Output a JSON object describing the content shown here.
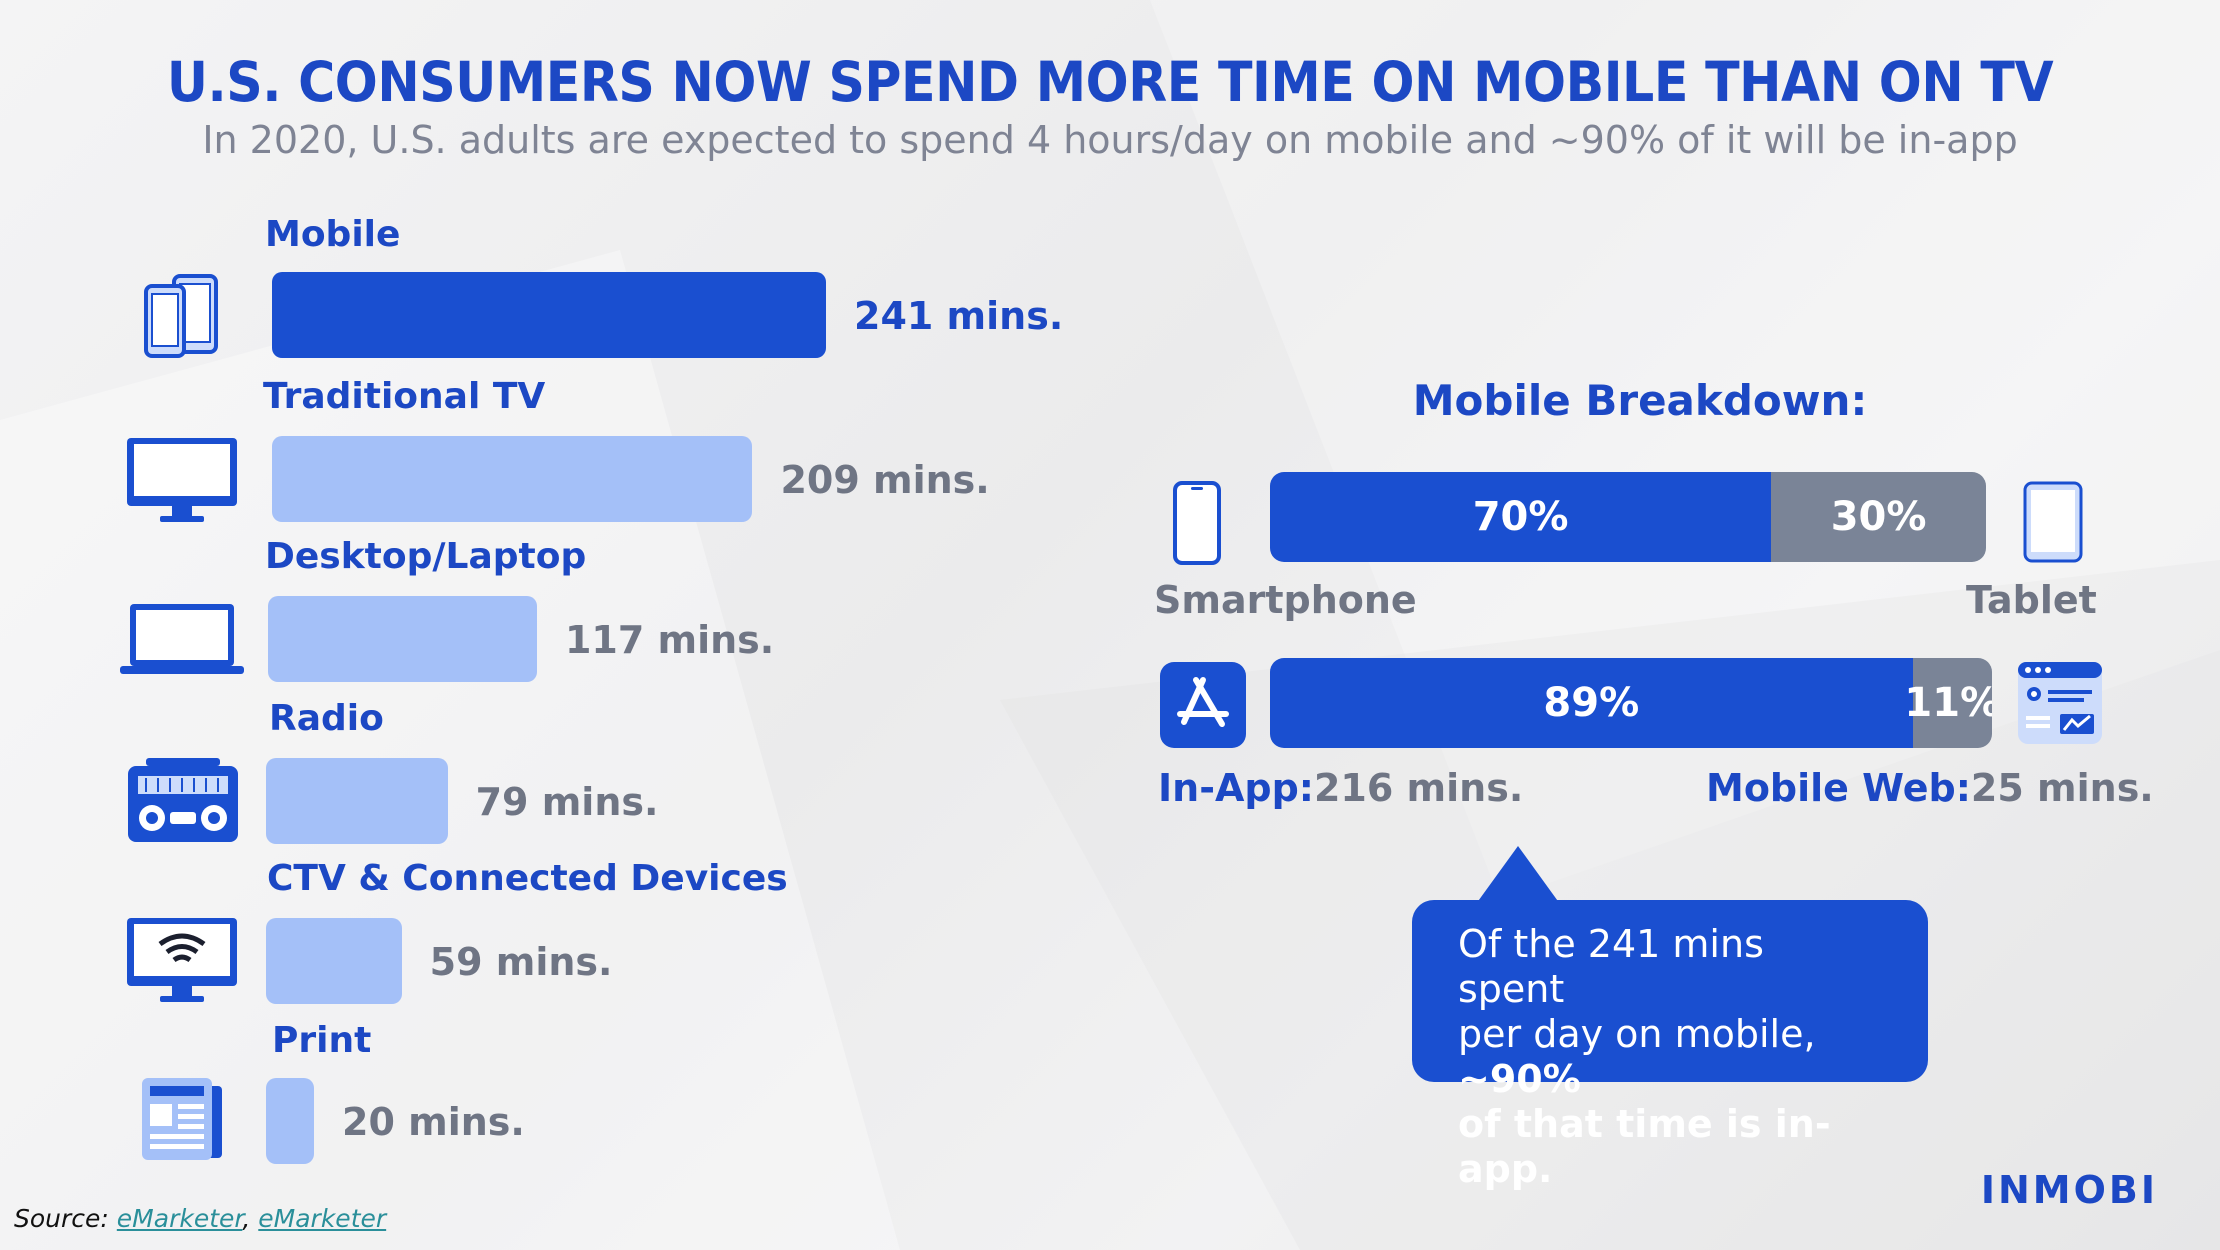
{
  "title": "U.S. CONSUMERS NOW SPEND MORE TIME ON MOBILE THAN ON TV",
  "subtitle": "In 2020, U.S. adults are expected to spend 4 hours/day on mobile and ~90% of it will be in-app",
  "colors": {
    "brand": "#1c48c4",
    "bar_primary": "#1a4fd0",
    "bar_light": "#a4c0f8",
    "gray_segment": "#7a8497",
    "value_gray": "#6f7584"
  },
  "icons": [
    "phones-icon",
    "tv-icon",
    "laptop-icon",
    "radio-icon",
    "ctv-icon",
    "newspaper-icon",
    "smartphone-icon",
    "tablet-icon",
    "app-store-icon",
    "web-browser-icon"
  ],
  "chart_data": [
    {
      "type": "bar",
      "orientation": "horizontal",
      "unit": "mins.",
      "categories": [
        "Mobile",
        "Traditional TV",
        "Desktop/Laptop",
        "Radio",
        "CTV & Connected Devices",
        "Print"
      ],
      "values": [
        241,
        209,
        117,
        79,
        59,
        20
      ],
      "value_labels": [
        "241 mins.",
        "209 mins.",
        "117 mins.",
        "79 mins.",
        "59 mins.",
        "20 mins."
      ],
      "highlight_index": 0
    },
    {
      "type": "bar",
      "stacked": true,
      "title": "Mobile Breakdown:",
      "rows": [
        {
          "segments": [
            {
              "name": "Smartphone",
              "value": 70,
              "label": "70%"
            },
            {
              "name": "Tablet",
              "value": 30,
              "label": "30%"
            }
          ],
          "left_label": "Smartphone",
          "right_label": "Tablet"
        },
        {
          "segments": [
            {
              "name": "In-App",
              "value": 89,
              "label": "89%"
            },
            {
              "name": "Mobile Web",
              "value": 11,
              "label": "11%"
            }
          ],
          "left_label_bold": "In-App:",
          "left_label_value": "216 mins.",
          "right_label_bold": "Mobile Web:",
          "right_label_value": "25 mins."
        }
      ]
    }
  ],
  "callout": {
    "line1": "Of the 241 mins spent",
    "line2a": "per day on mobile, ",
    "line2b": "~90%",
    "line3": "of that time is in-app."
  },
  "source": {
    "prefix": "Source: ",
    "link1": "eMarketer",
    "sep": ", ",
    "link2": "eMarketer"
  },
  "logo": "INMOBI"
}
